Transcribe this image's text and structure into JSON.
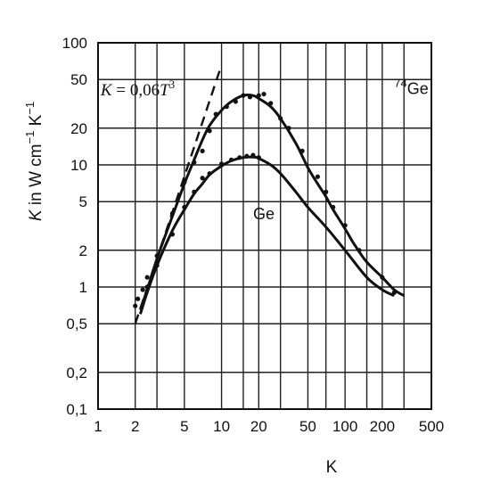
{
  "chart_data": {
    "type": "line",
    "x_scale": "log",
    "y_scale": "log",
    "xlabel": "K",
    "ylabel": {
      "var": "K",
      "text": " in W cm",
      "exp1": "−1",
      "text2": " K",
      "exp2": "−1"
    },
    "xlim": [
      1,
      500
    ],
    "ylim": [
      0.1,
      100
    ],
    "x_ticks": [
      {
        "value": 1,
        "label": "1"
      },
      {
        "value": 2,
        "label": "2"
      },
      {
        "value": 5,
        "label": "5"
      },
      {
        "value": 10,
        "label": "10"
      },
      {
        "value": 20,
        "label": "20"
      },
      {
        "value": 50,
        "label": "50"
      },
      {
        "value": 100,
        "label": "100"
      },
      {
        "value": 200,
        "label": "200"
      },
      {
        "value": 500,
        "label": "500"
      }
    ],
    "y_ticks": [
      {
        "value": 0.1,
        "label": "0,1"
      },
      {
        "value": 0.2,
        "label": "0,2"
      },
      {
        "value": 0.5,
        "label": "0,5"
      },
      {
        "value": 1,
        "label": "1"
      },
      {
        "value": 2,
        "label": "2"
      },
      {
        "value": 5,
        "label": "5"
      },
      {
        "value": 10,
        "label": "10"
      },
      {
        "value": 20,
        "label": "20"
      },
      {
        "value": 50,
        "label": "50"
      },
      {
        "value": 100,
        "label": "100"
      }
    ],
    "x_grid": [
      1,
      2,
      3,
      5,
      10,
      15,
      20,
      30,
      50,
      70,
      100,
      150,
      200,
      300,
      500
    ],
    "y_grid": [
      0.1,
      0.2,
      0.5,
      1,
      2,
      5,
      10,
      20,
      50,
      100
    ],
    "grid": true,
    "series": [
      {
        "name": "⁷⁴Ge",
        "style": "solid",
        "points": [
          [
            2.2,
            0.65
          ],
          [
            2.5,
            0.95
          ],
          [
            3,
            1.7
          ],
          [
            4,
            3.8
          ],
          [
            5,
            7
          ],
          [
            6,
            11
          ],
          [
            7,
            16
          ],
          [
            8,
            21
          ],
          [
            10,
            28
          ],
          [
            12,
            33
          ],
          [
            15,
            37
          ],
          [
            18,
            37
          ],
          [
            20,
            35
          ],
          [
            25,
            30
          ],
          [
            30,
            24
          ],
          [
            40,
            15
          ],
          [
            50,
            9.5
          ],
          [
            60,
            7
          ],
          [
            70,
            5.5
          ],
          [
            80,
            4.3
          ],
          [
            100,
            3
          ],
          [
            120,
            2.2
          ],
          [
            150,
            1.6
          ],
          [
            200,
            1.2
          ],
          [
            250,
            0.95
          ],
          [
            300,
            0.85
          ]
        ],
        "measured": [
          [
            2.1,
            0.8
          ],
          [
            2.3,
            0.95
          ],
          [
            2.5,
            1.2
          ],
          [
            3,
            1.8
          ],
          [
            4,
            4
          ],
          [
            5,
            7.2
          ],
          [
            6,
            10.5
          ],
          [
            7,
            13
          ],
          [
            8,
            19
          ],
          [
            9,
            26
          ],
          [
            11,
            30
          ],
          [
            13,
            33
          ],
          [
            15,
            37
          ],
          [
            17,
            36
          ],
          [
            20,
            37
          ],
          [
            22,
            38
          ],
          [
            25,
            32
          ],
          [
            30,
            24
          ],
          [
            35,
            20
          ],
          [
            45,
            13
          ],
          [
            60,
            8
          ],
          [
            70,
            6
          ],
          [
            80,
            4.5
          ],
          [
            100,
            3.2
          ],
          [
            130,
            2
          ],
          [
            200,
            1.2
          ],
          [
            250,
            0.9
          ]
        ]
      },
      {
        "name": "Ge",
        "style": "solid",
        "points": [
          [
            2.2,
            0.6
          ],
          [
            2.5,
            0.9
          ],
          [
            3,
            1.5
          ],
          [
            4,
            2.9
          ],
          [
            5,
            4.3
          ],
          [
            6,
            5.8
          ],
          [
            7,
            7
          ],
          [
            8,
            8.3
          ],
          [
            10,
            9.8
          ],
          [
            12,
            10.8
          ],
          [
            15,
            11.5
          ],
          [
            18,
            11.6
          ],
          [
            20,
            11.3
          ],
          [
            25,
            10
          ],
          [
            30,
            8.5
          ],
          [
            40,
            6
          ],
          [
            50,
            4.5
          ],
          [
            70,
            3.1
          ],
          [
            100,
            2
          ],
          [
            150,
            1.2
          ],
          [
            200,
            0.95
          ],
          [
            250,
            0.85
          ]
        ],
        "measured": [
          [
            2,
            0.7
          ],
          [
            2.5,
            1
          ],
          [
            3,
            1.5
          ],
          [
            4,
            2.7
          ],
          [
            5,
            4.5
          ],
          [
            6,
            6
          ],
          [
            7,
            7.8
          ],
          [
            8,
            8.5
          ],
          [
            10,
            10.2
          ],
          [
            12,
            11
          ],
          [
            14,
            11.5
          ],
          [
            16,
            11.8
          ],
          [
            18,
            12
          ],
          [
            20,
            11.5
          ]
        ]
      },
      {
        "name": "K = 0,06 T³",
        "style": "dashed",
        "points": [
          [
            2,
            0.5
          ],
          [
            9.7,
            60
          ]
        ]
      }
    ],
    "annotations": [
      {
        "text": "Ge",
        "x": 22,
        "y": 3.6,
        "kind": "plain"
      },
      {
        "text": "Ge",
        "sup": "74",
        "x": 250,
        "y": 38,
        "kind": "plain-sup"
      },
      {
        "text_var": "K",
        "text_mid": " = 0,06",
        "text_var2": "T",
        "sup": "3",
        "x": 1.05,
        "y": 37,
        "kind": "formula"
      }
    ]
  }
}
